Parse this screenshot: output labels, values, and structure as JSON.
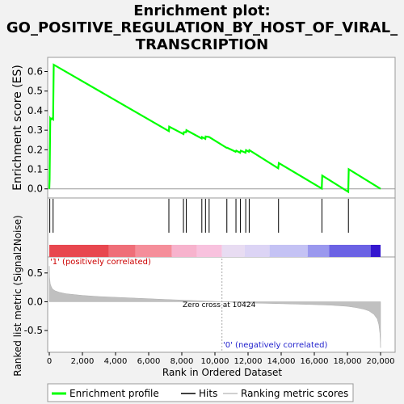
{
  "chart_data": {
    "type": "line",
    "title_lines": [
      "Enrichment plot:",
      "GO_POSITIVE_REGULATION_BY_HOST_OF_VIRAL_",
      "TRANSCRIPTION"
    ],
    "top_panel": {
      "ylabel": "Enrichment score (ES)",
      "ylim": [
        -0.03,
        0.66
      ],
      "yticks": [
        "0.0",
        "0.1",
        "0.2",
        "0.3",
        "0.4",
        "0.5",
        "0.6"
      ],
      "series": [
        {
          "name": "Enrichment profile",
          "color": "#00ff00",
          "x": [
            0,
            20,
            60,
            100,
            150,
            230,
            270,
            7220,
            7240,
            8100,
            8120,
            8260,
            8280,
            9200,
            9220,
            9420,
            9440,
            9650,
            10700,
            10740,
            11250,
            11290,
            11520,
            11560,
            11850,
            11880,
            12050,
            12080,
            13820,
            13860,
            16450,
            16480,
            18050,
            18080,
            20000
          ],
          "y": [
            0.0,
            0.05,
            0.36,
            0.355,
            0.36,
            0.355,
            0.635,
            0.295,
            0.318,
            0.28,
            0.29,
            0.29,
            0.3,
            0.258,
            0.265,
            0.256,
            0.268,
            0.265,
            0.21,
            0.21,
            0.19,
            0.195,
            0.185,
            0.195,
            0.185,
            0.198,
            0.19,
            0.198,
            0.105,
            0.132,
            0.002,
            0.068,
            -0.015,
            0.1,
            0.0
          ]
        }
      ]
    },
    "hits": [
      30,
      230,
      7220,
      8100,
      8270,
      9210,
      9430,
      9650,
      10720,
      11270,
      11540,
      11860,
      12070,
      13840,
      16460,
      18060
    ],
    "heatmap_bar": {
      "segments": [
        {
          "from": 0,
          "to": 3600,
          "color": "#e8474f"
        },
        {
          "from": 3600,
          "to": 5200,
          "color": "#ef6e78"
        },
        {
          "from": 5200,
          "to": 7400,
          "color": "#f58e9a"
        },
        {
          "from": 7400,
          "to": 8900,
          "color": "#f7b3cd"
        },
        {
          "from": 8900,
          "to": 10424,
          "color": "#f8c2de"
        },
        {
          "from": 10424,
          "to": 11800,
          "color": "#e8dcf2"
        },
        {
          "from": 11800,
          "to": 13300,
          "color": "#dcd4f5"
        },
        {
          "from": 13300,
          "to": 15600,
          "color": "#c4c2f4"
        },
        {
          "from": 15600,
          "to": 16900,
          "color": "#9a98ee"
        },
        {
          "from": 16900,
          "to": 19400,
          "color": "#6b62e4"
        },
        {
          "from": 19400,
          "to": 20000,
          "color": "#3417cf"
        }
      ]
    },
    "bottom_panel": {
      "ylabel": "Ranked list metric (Signal2Noise)",
      "xlabel": "Rank in Ordered Dataset",
      "ylim": [
        -0.85,
        0.75
      ],
      "yticks": [
        "0.5",
        "0.0",
        "-0.5"
      ],
      "xticks": [
        "0",
        "2,000",
        "4,000",
        "6,000",
        "8,000",
        "10,000",
        "12,000",
        "14,000",
        "16,000",
        "18,000",
        "20,000"
      ],
      "metric_x": [
        0,
        20,
        60,
        120,
        200,
        350,
        600,
        1000,
        2000,
        3000,
        5000,
        7000,
        9000,
        10424,
        12000,
        14000,
        16000,
        17000,
        18000,
        18500,
        19000,
        19300,
        19600,
        19800,
        19900,
        19960,
        20000
      ],
      "metric_y": [
        0.62,
        0.42,
        0.31,
        0.26,
        0.22,
        0.19,
        0.165,
        0.14,
        0.11,
        0.09,
        0.065,
        0.04,
        0.018,
        0.0,
        -0.02,
        -0.035,
        -0.05,
        -0.06,
        -0.08,
        -0.1,
        -0.13,
        -0.16,
        -0.22,
        -0.3,
        -0.4,
        -0.55,
        -0.8
      ],
      "zero_cross_label": "Zero cross at 10424",
      "zero_cross": 10424,
      "pos_label": "'1' (positively correlated)",
      "neg_label": "'0' (negatively correlated)"
    },
    "x_range": [
      0,
      20000
    ],
    "legend": [
      {
        "label": "Enrichment profile",
        "color": "#00ff00"
      },
      {
        "label": "Hits",
        "color": "#000000"
      },
      {
        "label": "Ranking metric scores",
        "color": "#c0c0c0"
      }
    ]
  }
}
